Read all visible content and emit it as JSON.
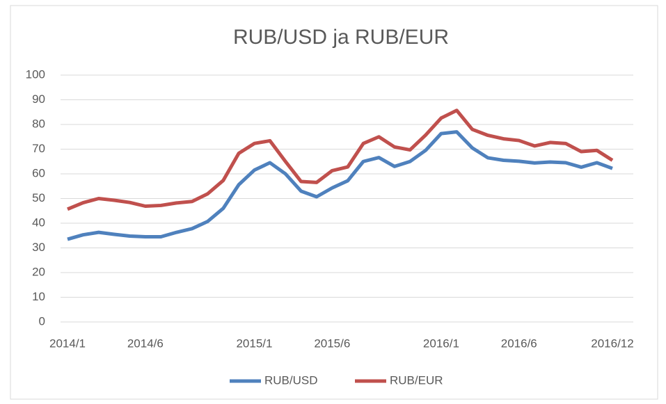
{
  "chart_data": {
    "type": "line",
    "title": "RUB/USD ja RUB/EUR",
    "categories": [
      "2014/1",
      null,
      null,
      null,
      null,
      "2014/6",
      null,
      null,
      null,
      null,
      null,
      null,
      "2015/1",
      null,
      null,
      null,
      null,
      "2015/6",
      null,
      null,
      null,
      null,
      null,
      null,
      "2016/1",
      null,
      null,
      null,
      null,
      "2016/6",
      null,
      null,
      null,
      null,
      null,
      "2016/12"
    ],
    "series": [
      {
        "name": "RUB/USD",
        "color": "#4f81bd",
        "values": [
          33.5,
          35.3,
          36.3,
          35.5,
          34.8,
          34.5,
          34.5,
          36.3,
          37.8,
          40.7,
          46,
          55.6,
          61.5,
          64.5,
          60,
          53,
          50.7,
          54.3,
          57.2,
          65,
          66.6,
          63,
          65,
          69.5,
          76.3,
          77,
          70.5,
          66.5,
          65.5,
          65.1,
          64.4,
          64.8,
          64.5,
          62.7,
          64.5,
          62.2
        ]
      },
      {
        "name": "RUB/EUR",
        "color": "#c0504d",
        "values": [
          45.7,
          48.3,
          50,
          49.3,
          48.4,
          46.9,
          47.2,
          48.2,
          48.8,
          51.9,
          57.3,
          68.3,
          72.3,
          73.4,
          65,
          56.9,
          56.5,
          61.3,
          62.8,
          72.3,
          75,
          70.9,
          69.7,
          75.7,
          82.6,
          85.7,
          78,
          75.6,
          74.2,
          73.5,
          71.3,
          72.7,
          72.3,
          69,
          69.5,
          65.5
        ]
      }
    ],
    "ylim": [
      0,
      100
    ],
    "yticks": [
      0,
      10,
      20,
      30,
      40,
      50,
      60,
      70,
      80,
      90,
      100
    ],
    "grid": true,
    "legend": "bottom"
  }
}
